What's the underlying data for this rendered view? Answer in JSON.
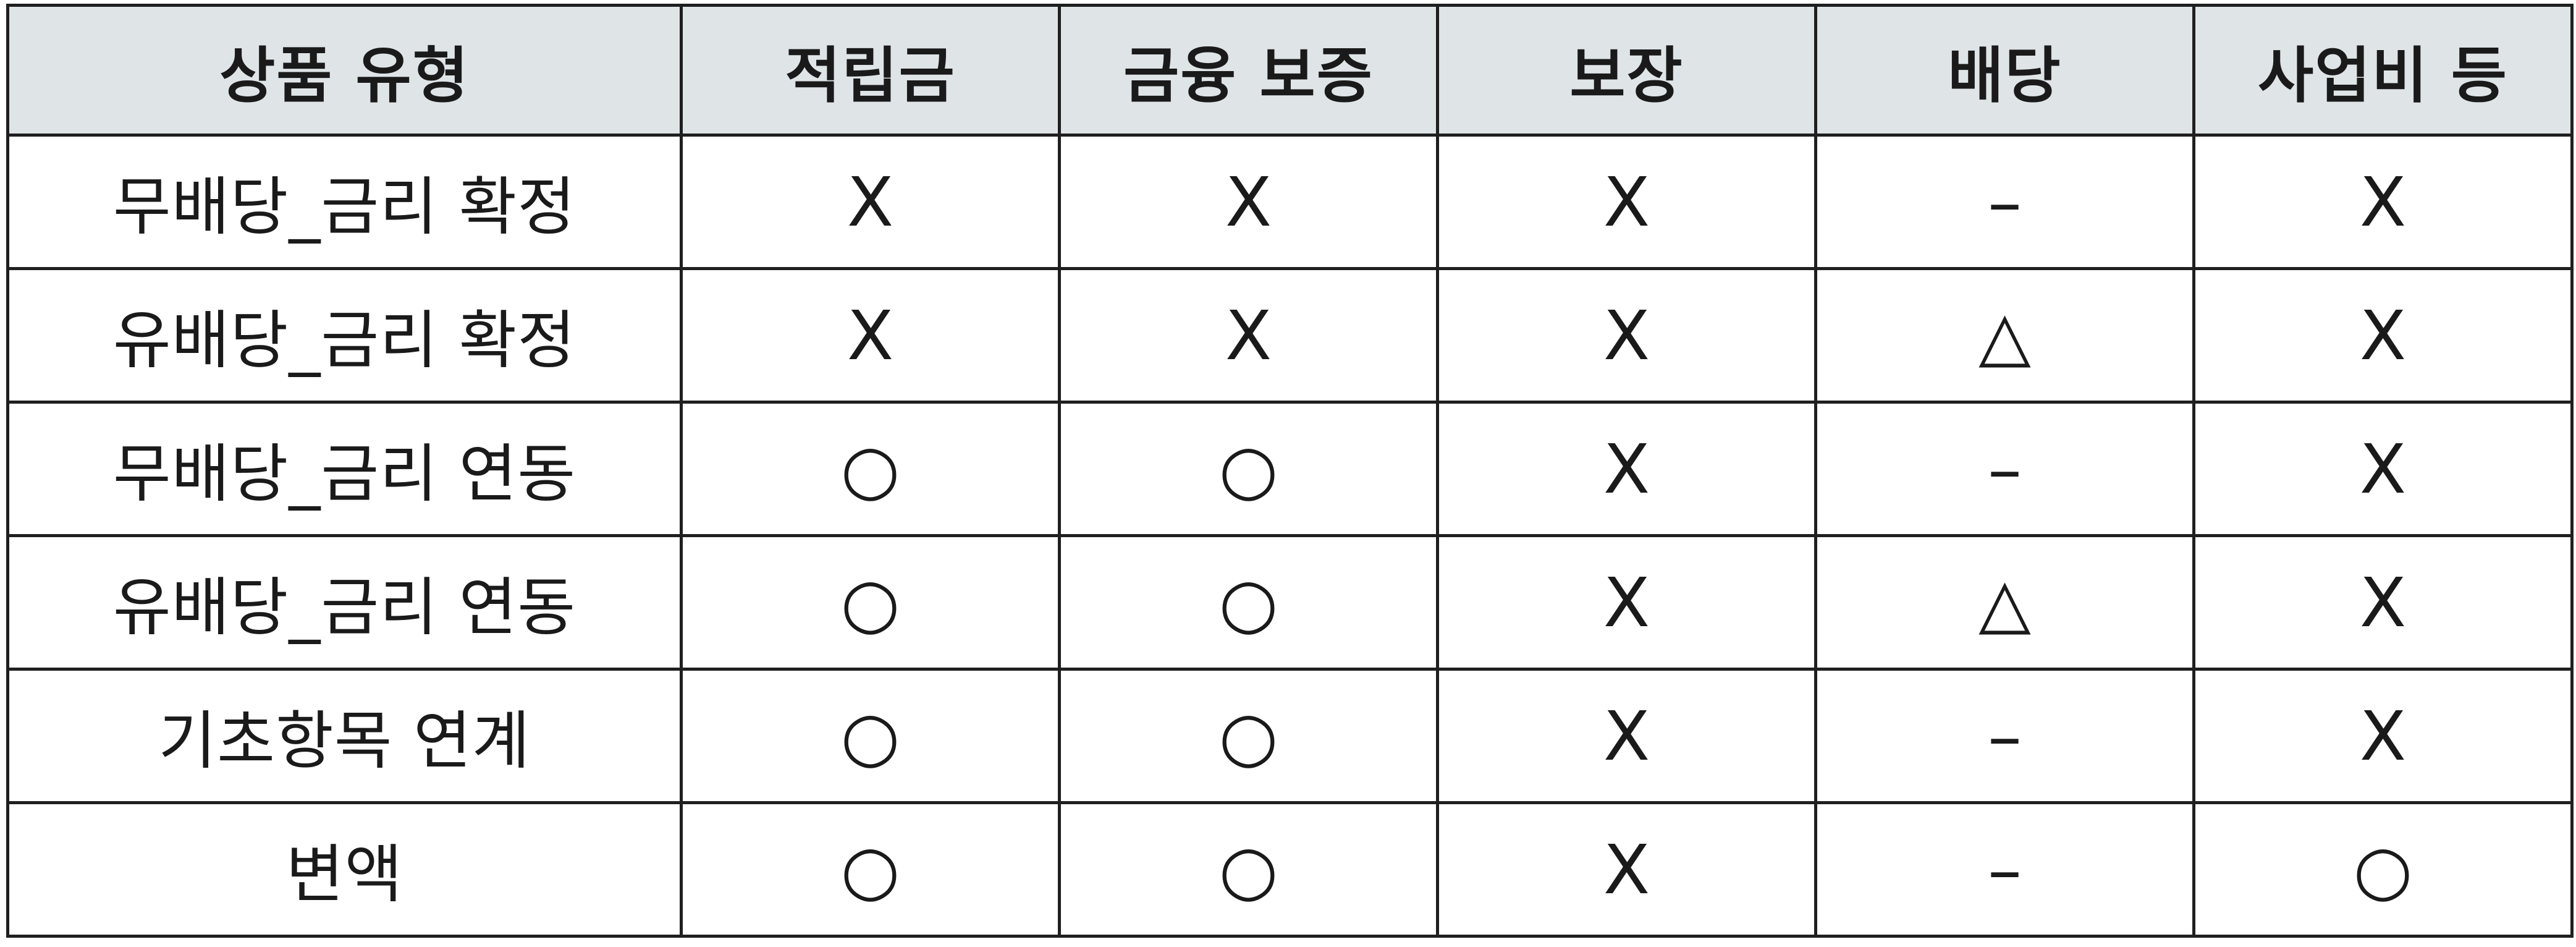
{
  "headers": [
    "상품 유형",
    "적립금",
    "금융 보증",
    "보장",
    "배당",
    "사업비 등"
  ],
  "rows": [
    {
      "type": "무배당_금리 확정",
      "marks": [
        "X",
        "X",
        "X",
        "–",
        "X"
      ]
    },
    {
      "type": "유배당_금리 확정",
      "marks": [
        "X",
        "X",
        "X",
        "△",
        "X"
      ]
    },
    {
      "type": "무배당_금리 연동",
      "marks": [
        "○",
        "○",
        "X",
        "–",
        "X"
      ]
    },
    {
      "type": "유배당_금리 연동",
      "marks": [
        "○",
        "○",
        "X",
        "△",
        "X"
      ]
    },
    {
      "type": "기초항목 연계",
      "marks": [
        "○",
        "○",
        "X",
        "–",
        "X"
      ]
    },
    {
      "type": "변액",
      "marks": [
        "○",
        "○",
        "X",
        "–",
        "○"
      ]
    }
  ],
  "colors": {
    "header_bg": "#dfe4e7",
    "border": "#1f1f1f",
    "text": "#1a1a1a"
  }
}
